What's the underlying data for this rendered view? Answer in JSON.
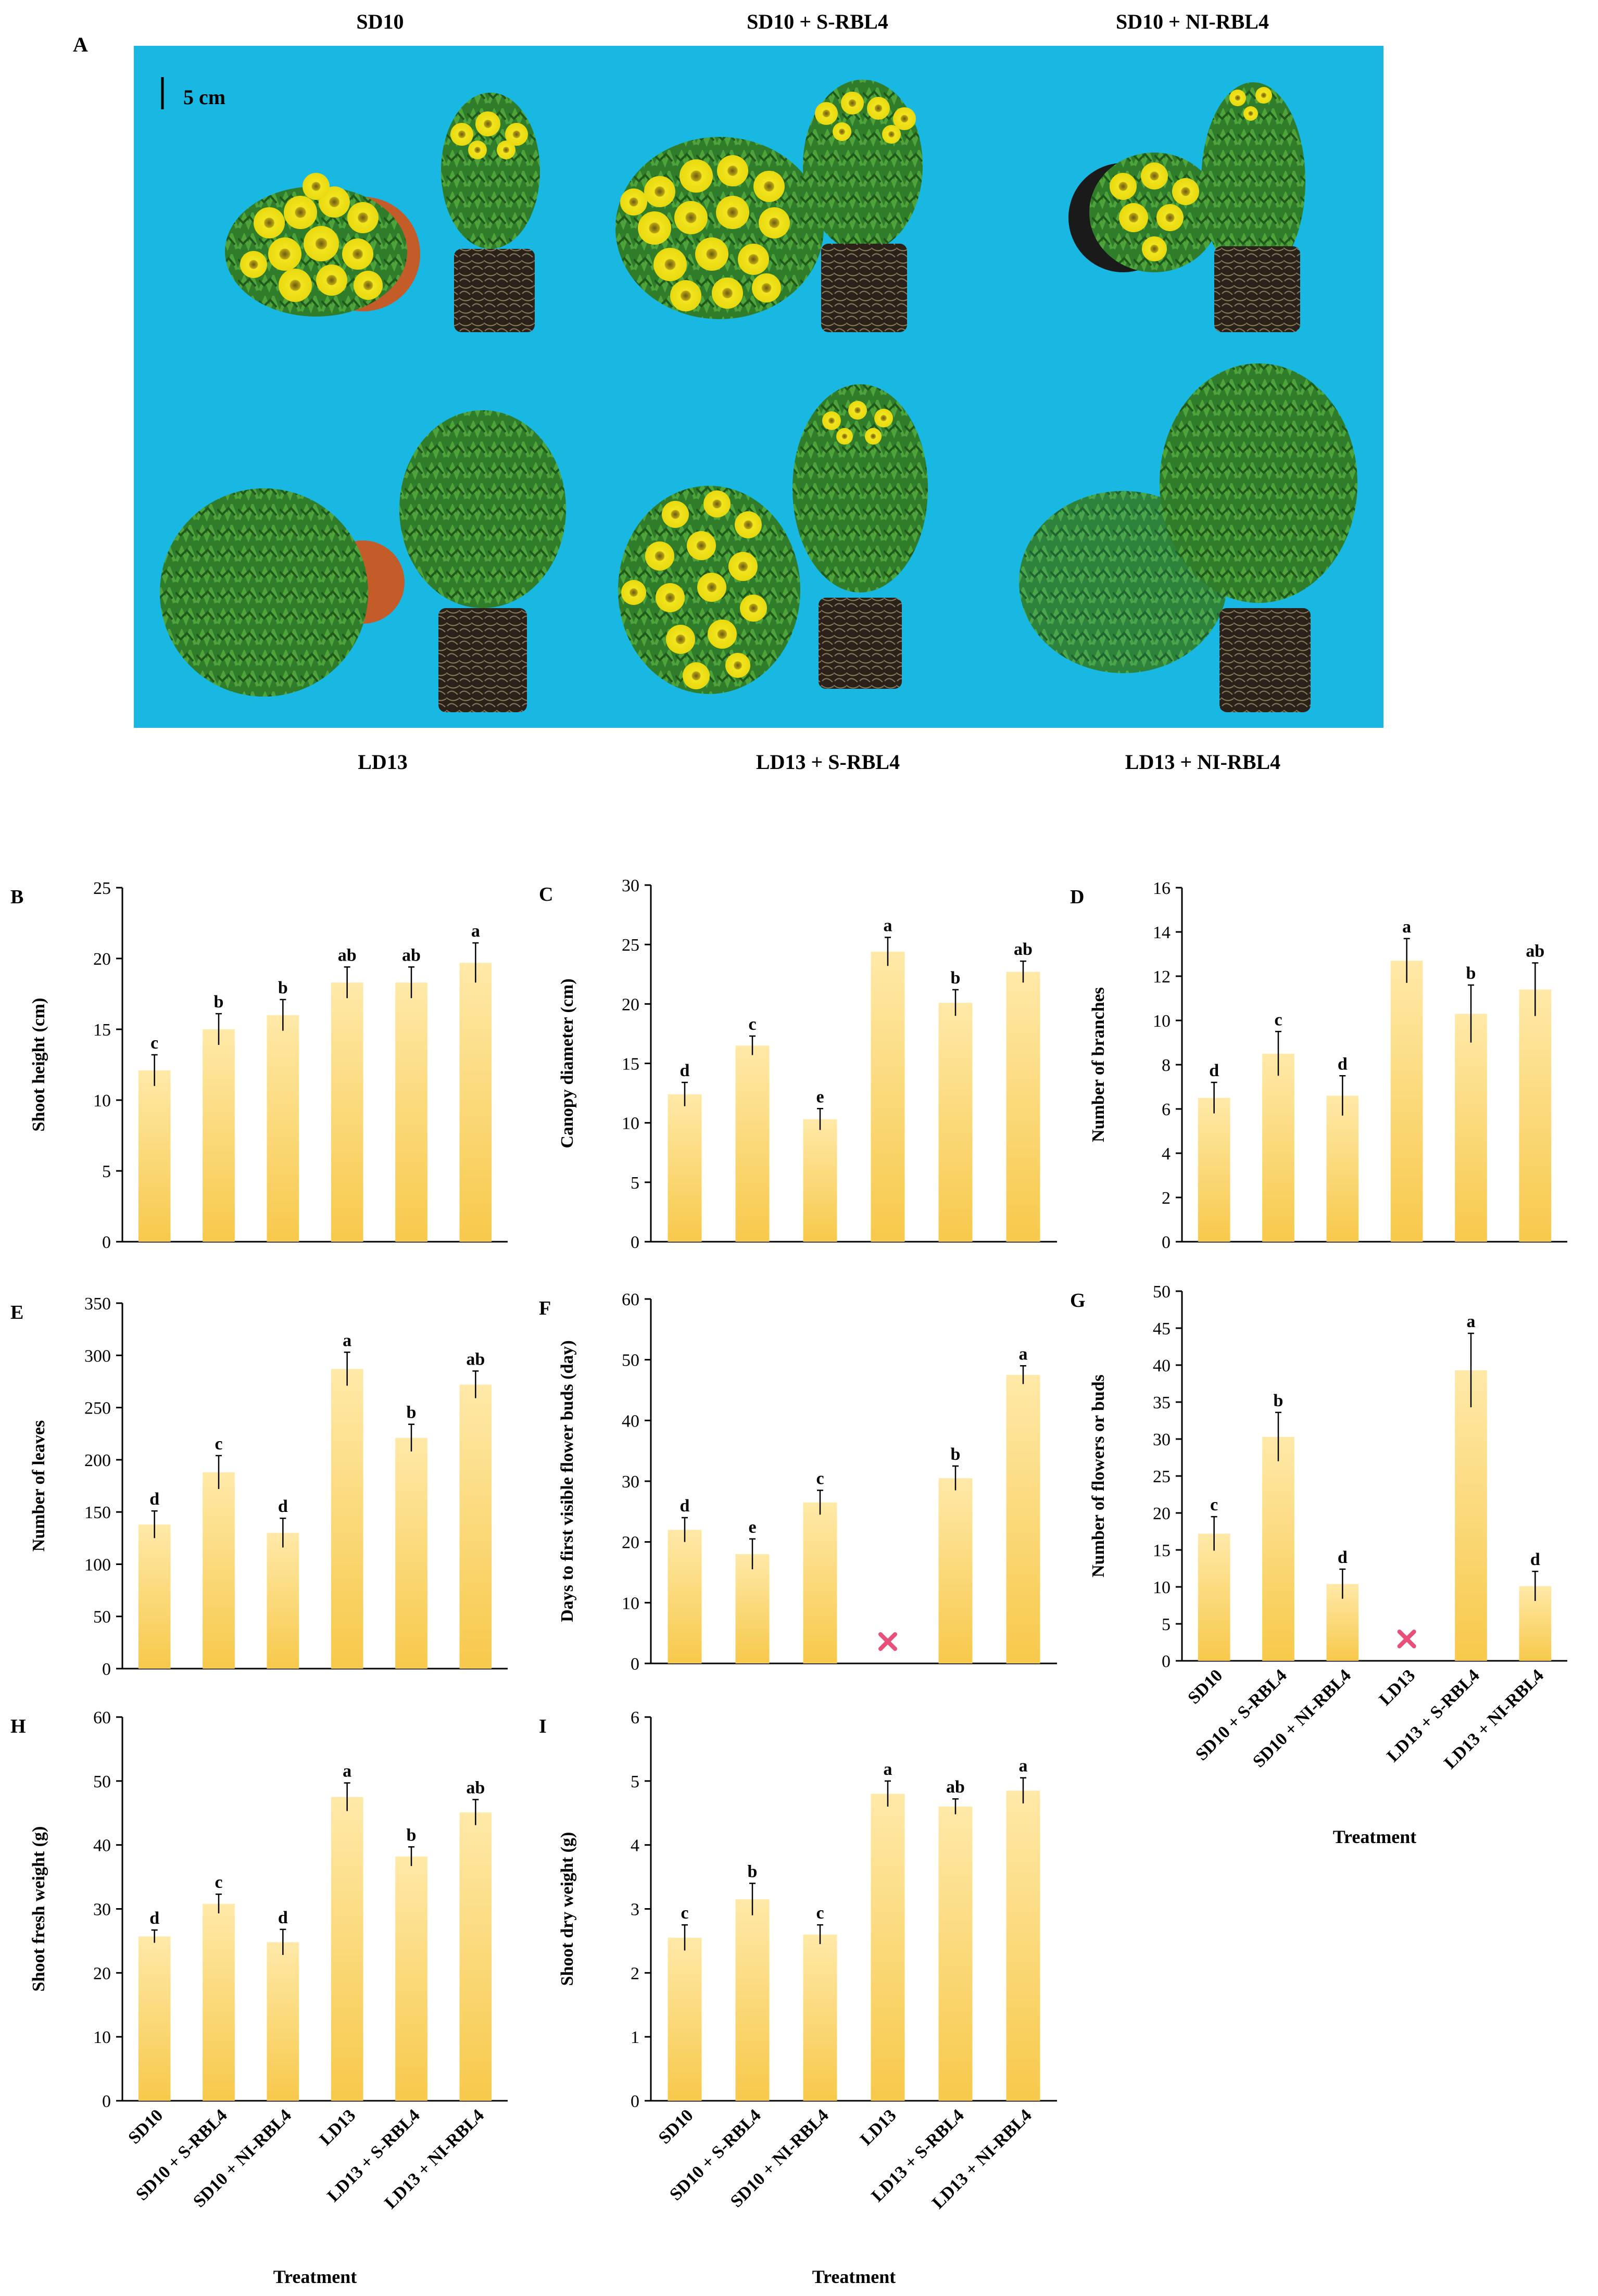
{
  "panel_a": {
    "letter": "A",
    "scale_bar_label": "5 cm",
    "captions_top": [
      "SD10",
      "SD10 + S-RBL4",
      "SD10 + NI-RBL4"
    ],
    "captions_bottom": [
      "LD13",
      "LD13 + S-RBL4",
      "LD13 + NI-RBL4"
    ],
    "background_color": "#18b8e2"
  },
  "treatments": [
    "SD10",
    "SD10 + S-RBL4",
    "SD10 + NI-RBL4",
    "LD13",
    "LD13 + S-RBL4",
    "LD13 + NI-RBL4"
  ],
  "x_axis_title": "Treatment",
  "styles": {
    "bar_top": "#ffe9a8",
    "bar_bottom": "#f7c94b",
    "no_data_mark_color": "#e8507a"
  },
  "chart_data": [
    {
      "id": "B",
      "letter": "B",
      "type": "bar",
      "ylabel": "Shoot height (cm)",
      "ylim": [
        0,
        25
      ],
      "yticks": [
        0,
        5,
        10,
        15,
        20,
        25
      ],
      "values": [
        12.1,
        15.0,
        16.0,
        18.3,
        18.3,
        19.7
      ],
      "errors": [
        1.1,
        1.1,
        1.1,
        1.1,
        1.1,
        1.4
      ],
      "letters": [
        "c",
        "b",
        "b",
        "ab",
        "ab",
        "a"
      ],
      "show_x_labels": false
    },
    {
      "id": "C",
      "letter": "C",
      "type": "bar",
      "ylabel": "Canopy diameter (cm)",
      "ylim": [
        0,
        30
      ],
      "yticks": [
        0,
        5,
        10,
        15,
        20,
        25,
        30
      ],
      "values": [
        12.4,
        16.5,
        10.3,
        24.4,
        20.1,
        22.7
      ],
      "errors": [
        1.0,
        0.8,
        0.9,
        1.2,
        1.1,
        0.9
      ],
      "letters": [
        "d",
        "c",
        "e",
        "a",
        "b",
        "ab"
      ],
      "show_x_labels": false
    },
    {
      "id": "D",
      "letter": "D",
      "type": "bar",
      "ylabel": "Number of branches",
      "ylim": [
        0,
        16
      ],
      "yticks": [
        0,
        2,
        4,
        6,
        8,
        10,
        12,
        14,
        16
      ],
      "values": [
        6.5,
        8.5,
        6.6,
        12.7,
        10.3,
        11.4
      ],
      "errors": [
        0.7,
        1.0,
        0.9,
        1.0,
        1.3,
        1.2
      ],
      "letters": [
        "d",
        "c",
        "d",
        "a",
        "b",
        "ab"
      ],
      "show_x_labels": false
    },
    {
      "id": "E",
      "letter": "E",
      "type": "bar",
      "ylabel": "Number of leaves",
      "ylim": [
        0,
        350
      ],
      "yticks": [
        0,
        50,
        100,
        150,
        200,
        250,
        300,
        350
      ],
      "values": [
        138,
        188,
        130,
        287,
        221,
        272
      ],
      "errors": [
        13,
        16,
        14,
        16,
        13,
        13
      ],
      "letters": [
        "d",
        "c",
        "d",
        "a",
        "b",
        "ab"
      ],
      "show_x_labels": false
    },
    {
      "id": "F",
      "letter": "F",
      "type": "bar",
      "ylabel": "Days to first visible flower buds (day)",
      "ylim": [
        0,
        60
      ],
      "yticks": [
        0,
        10,
        20,
        30,
        40,
        50,
        60
      ],
      "values": [
        22,
        18,
        26.5,
        null,
        30.5,
        47.5
      ],
      "errors": [
        2.0,
        2.5,
        2.0,
        null,
        2.0,
        1.5
      ],
      "letters": [
        "d",
        "e",
        "c",
        "",
        "b",
        "a"
      ],
      "no_data_index": 3,
      "show_x_labels": false
    },
    {
      "id": "G",
      "letter": "G",
      "type": "bar",
      "ylabel": "Number of flowers or buds",
      "ylim": [
        0,
        50
      ],
      "yticks": [
        0,
        5,
        10,
        15,
        20,
        25,
        30,
        35,
        40,
        45,
        50
      ],
      "values": [
        17.2,
        30.3,
        10.4,
        null,
        39.3,
        10.1
      ],
      "errors": [
        2.3,
        3.3,
        2.0,
        null,
        5.0,
        2.0
      ],
      "letters": [
        "c",
        "b",
        "d",
        "",
        "a",
        "d"
      ],
      "no_data_index": 3,
      "show_x_labels": true
    },
    {
      "id": "H",
      "letter": "H",
      "type": "bar",
      "ylabel": "Shoot fresh weight (g)",
      "ylim": [
        0,
        60
      ],
      "yticks": [
        0,
        10,
        20,
        30,
        40,
        50,
        60
      ],
      "values": [
        25.7,
        30.8,
        24.8,
        47.5,
        38.2,
        45.1
      ],
      "errors": [
        1.0,
        1.5,
        2.0,
        2.2,
        1.5,
        2.0
      ],
      "letters": [
        "d",
        "c",
        "d",
        "a",
        "b",
        "ab"
      ],
      "show_x_labels": true
    },
    {
      "id": "I",
      "letter": "I",
      "type": "bar",
      "ylabel": "Shoot dry weight (g)",
      "ylim": [
        0,
        6
      ],
      "yticks": [
        0,
        1,
        2,
        3,
        4,
        5,
        6
      ],
      "values": [
        2.55,
        3.15,
        2.6,
        4.8,
        4.6,
        4.85
      ],
      "errors": [
        0.2,
        0.25,
        0.15,
        0.2,
        0.12,
        0.2
      ],
      "letters": [
        "c",
        "b",
        "c",
        "a",
        "ab",
        "a"
      ],
      "show_x_labels": true
    }
  ]
}
